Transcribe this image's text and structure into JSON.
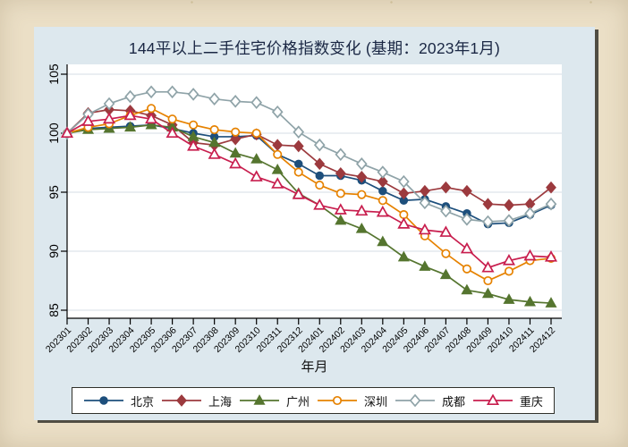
{
  "page": {
    "background_hex": "#ebdfc6"
  },
  "card": {
    "background_hex": "#dde8ee",
    "plot_background_hex": "#ffffff",
    "gridline_hex": "#dde4ea"
  },
  "chart_data": {
    "type": "line",
    "title": "144平以上二手住宅价格指数变化 (基期：2023年1月)",
    "xlabel": "年月",
    "ylabel": "",
    "ylim": [
      85,
      105
    ],
    "yticks": [
      85,
      90,
      95,
      100,
      105
    ],
    "grid": "horizontal",
    "legend_position": "bottom",
    "categories": [
      "202301",
      "202302",
      "202303",
      "202304",
      "202305",
      "202306",
      "202307",
      "202308",
      "202309",
      "202310",
      "202311",
      "202312",
      "202401",
      "202402",
      "202403",
      "202404",
      "202405",
      "202406",
      "202407",
      "202408",
      "202409",
      "202410",
      "202411",
      "202412"
    ],
    "series": [
      {
        "id": "beijing",
        "name": "北京",
        "color": "#1d4f7c",
        "marker": "circle",
        "fill": "solid",
        "values": [
          100,
          100.4,
          100.5,
          100.6,
          100.7,
          100.4,
          100,
          99.7,
          99.7,
          99.8,
          98.2,
          97.4,
          96.4,
          96.4,
          96,
          95.1,
          94.3,
          94.4,
          93.8,
          93.2,
          92.3,
          92.4,
          93.1,
          93.9
        ]
      },
      {
        "id": "shanghai",
        "name": "上海",
        "color": "#9c3a3e",
        "marker": "diamond",
        "fill": "solid",
        "values": [
          100,
          101.7,
          102,
          101.9,
          101.5,
          100.7,
          99.2,
          99,
          99.5,
          99.9,
          99,
          98.9,
          97.4,
          96.6,
          96.3,
          95.9,
          94.9,
          95.1,
          95.4,
          95.1,
          94,
          93.9,
          94,
          95.4
        ]
      },
      {
        "id": "guangzhou",
        "name": "广州",
        "color": "#55752f",
        "marker": "triangle",
        "fill": "solid",
        "values": [
          100,
          100.3,
          100.4,
          100.5,
          100.7,
          100.5,
          99.7,
          99.2,
          98.3,
          97.8,
          96.9,
          94.9,
          93.9,
          92.6,
          91.9,
          90.8,
          89.5,
          88.7,
          88,
          86.7,
          86.4,
          85.9,
          85.7,
          85.6
        ]
      },
      {
        "id": "shenzhen",
        "name": "深圳",
        "color": "#e68200",
        "marker": "circle",
        "fill": "open",
        "values": [
          100,
          100.5,
          100.8,
          101.5,
          102.1,
          101.2,
          100.7,
          100.3,
          100.1,
          100,
          98.2,
          96.7,
          95.6,
          94.9,
          94.8,
          94.3,
          93.1,
          91.3,
          89.8,
          88.5,
          87.5,
          88.3,
          89.2,
          89.4
        ]
      },
      {
        "id": "chengdu",
        "name": "成都",
        "color": "#8fa3a8",
        "marker": "diamond",
        "fill": "open",
        "values": [
          100,
          101.6,
          102.5,
          103.1,
          103.5,
          103.5,
          103.3,
          102.9,
          102.7,
          102.6,
          101.8,
          100.1,
          99,
          98.2,
          97.4,
          96.7,
          95.9,
          94.1,
          93.4,
          92.7,
          92.5,
          92.6,
          93.2,
          94
        ]
      },
      {
        "id": "chongqing",
        "name": "重庆",
        "color": "#c81e4e",
        "marker": "triangle",
        "fill": "open",
        "values": [
          100,
          101,
          101.2,
          101.5,
          101.2,
          100,
          98.9,
          98.2,
          97.4,
          96.3,
          95.7,
          94.8,
          93.9,
          93.5,
          93.4,
          93.3,
          92.3,
          91.8,
          91.6,
          90.2,
          88.6,
          89.2,
          89.6,
          89.5
        ]
      }
    ]
  }
}
